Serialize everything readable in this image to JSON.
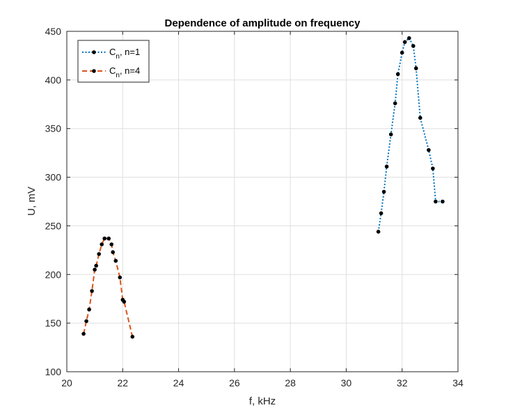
{
  "chart_data": {
    "type": "line",
    "title": "Dependence of amplitude on frequency",
    "xlabel": "f, kHz",
    "ylabel": "U, mV",
    "xlim": [
      20,
      34
    ],
    "ylim": [
      100,
      450
    ],
    "xticks": [
      "20",
      "22",
      "24",
      "26",
      "28",
      "30",
      "32",
      "34"
    ],
    "yticks": [
      "100",
      "150",
      "200",
      "250",
      "300",
      "350",
      "400",
      "450"
    ],
    "grid": true,
    "legend_position": "top-left",
    "series": [
      {
        "name": "C",
        "name_sub": "n",
        "name_suffix": ", n=1",
        "color": "#0072BD",
        "line_style": "dotted",
        "marker": "dot",
        "x": [
          31.15,
          31.25,
          31.35,
          31.45,
          31.6,
          31.75,
          31.85,
          32.0,
          32.1,
          32.25,
          32.4,
          32.5,
          32.65,
          32.95,
          33.1,
          33.2,
          33.45
        ],
        "y": [
          244,
          263,
          285,
          311,
          344,
          376,
          406,
          428,
          439,
          443,
          435,
          412,
          361,
          328,
          309,
          275,
          275
        ]
      },
      {
        "name": "C",
        "name_sub": "n",
        "name_suffix": ", n=4",
        "color": "#D95319",
        "line_style": "dashed",
        "marker": "dot",
        "x": [
          20.6,
          20.7,
          20.8,
          20.9,
          21.0,
          21.05,
          21.15,
          21.25,
          21.35,
          21.5,
          21.6,
          21.65,
          21.75,
          21.9,
          22.0,
          22.05,
          22.35
        ],
        "y": [
          139,
          152,
          164,
          183,
          205,
          209,
          221,
          231,
          237,
          237,
          231,
          223,
          214,
          197,
          174,
          172,
          136
        ]
      }
    ]
  }
}
